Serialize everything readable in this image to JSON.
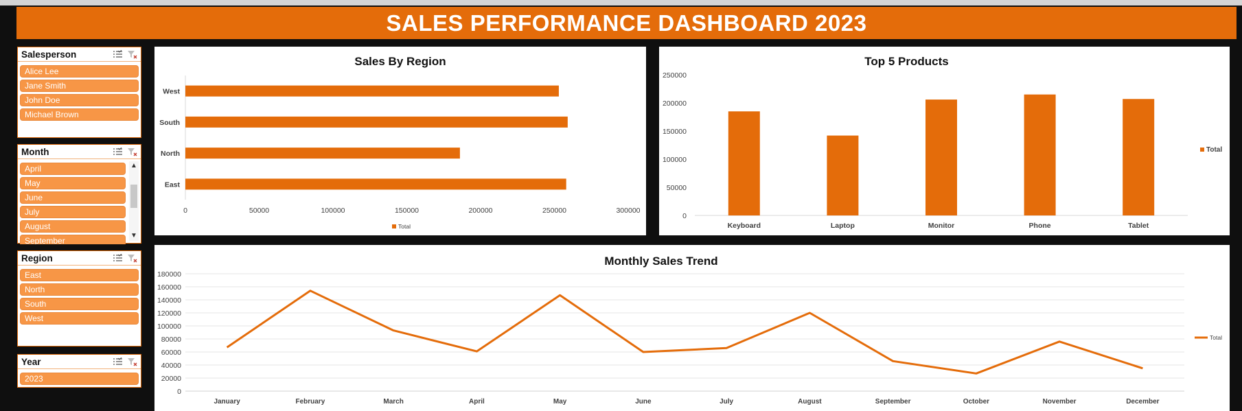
{
  "dashboard": {
    "title": "SALES PERFORMANCE DASHBOARD 2023"
  },
  "colors": {
    "accent": "#e46c0a",
    "slicer_item": "#f79646"
  },
  "slicers": {
    "salesperson": {
      "title": "Salesperson",
      "items": [
        "Alice Lee",
        "Jane Smith",
        "John Doe",
        "Michael Brown"
      ]
    },
    "month": {
      "title": "Month",
      "items": [
        "April",
        "May",
        "June",
        "July",
        "August",
        "September"
      ]
    },
    "region": {
      "title": "Region",
      "items": [
        "East",
        "North",
        "South",
        "West"
      ]
    },
    "year": {
      "title": "Year",
      "items": [
        "2023"
      ]
    }
  },
  "icons": {
    "multi_select": "multi-select-icon",
    "clear_filter": "clear-filter-icon"
  },
  "chart_data": [
    {
      "type": "bar",
      "orientation": "horizontal",
      "title": "Sales By Region",
      "categories": [
        "West",
        "South",
        "North",
        "East"
      ],
      "series": [
        {
          "name": "Total",
          "values": [
            253000,
            259000,
            186000,
            258000
          ]
        }
      ],
      "xlim": [
        0,
        300000
      ],
      "ticks": [
        "0",
        "50000",
        "100000",
        "150000",
        "200000",
        "250000",
        "300000"
      ],
      "legend": "bottom",
      "grid": false
    },
    {
      "type": "bar",
      "title": "Top 5 Products",
      "categories": [
        "Keyboard",
        "Laptop",
        "Monitor",
        "Phone",
        "Tablet"
      ],
      "series": [
        {
          "name": "Total",
          "values": [
            185000,
            142000,
            206000,
            215000,
            207000
          ]
        }
      ],
      "ylim": [
        0,
        250000
      ],
      "ticks": [
        "0",
        "50000",
        "100000",
        "150000",
        "200000",
        "250000"
      ],
      "legend": "right",
      "grid": false
    },
    {
      "type": "line",
      "title": "Monthly Sales Trend",
      "categories": [
        "January",
        "February",
        "March",
        "April",
        "May",
        "June",
        "July",
        "August",
        "September",
        "October",
        "November",
        "December"
      ],
      "series": [
        {
          "name": "Total",
          "values": [
            67000,
            154000,
            93000,
            61000,
            147000,
            60000,
            66000,
            120000,
            46000,
            27000,
            76000,
            35000
          ]
        }
      ],
      "ylim": [
        0,
        180000
      ],
      "ticks": [
        "0",
        "20000",
        "40000",
        "60000",
        "80000",
        "100000",
        "120000",
        "140000",
        "160000",
        "180000"
      ],
      "legend": "right",
      "grid": true
    }
  ]
}
